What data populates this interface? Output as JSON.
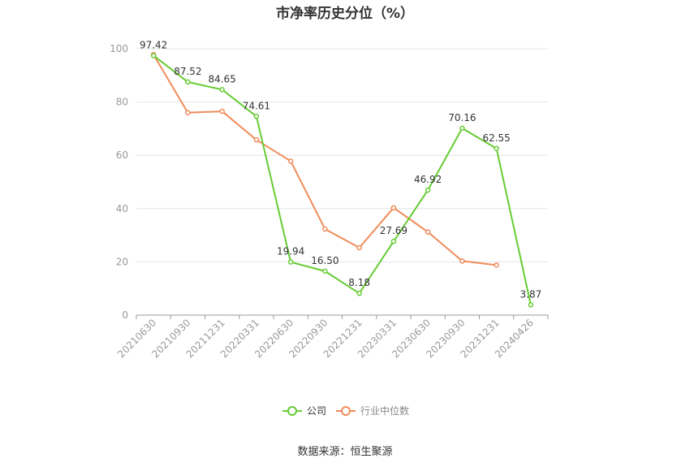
{
  "chart_data": {
    "type": "line",
    "title": "市净率历史分位（%）",
    "categories": [
      "20210630",
      "20210930",
      "20211231",
      "20220331",
      "20220630",
      "20220930",
      "20221231",
      "20230331",
      "20230630",
      "20230930",
      "20231231",
      "20240426"
    ],
    "ylim": [
      0,
      100
    ],
    "yticks": [
      0,
      20,
      40,
      60,
      80,
      100
    ],
    "grid": true,
    "legend_position": "bottom",
    "series": [
      {
        "name": "公司",
        "color": "#66cc33",
        "values": [
          97.42,
          87.52,
          84.65,
          74.61,
          19.94,
          16.5,
          8.18,
          27.69,
          46.92,
          70.16,
          62.55,
          3.87
        ],
        "labels": [
          "97.42",
          "87.52",
          "84.65",
          "74.61",
          "19.94",
          "16.50",
          "8.18",
          "27.69",
          "46.92",
          "70.16",
          "62.55",
          "3.87"
        ]
      },
      {
        "name": "行业中位数",
        "color": "#f08c5a",
        "values": [
          97.8,
          76.0,
          76.5,
          65.8,
          57.8,
          32.3,
          25.3,
          40.3,
          31.2,
          20.3,
          18.8,
          null
        ]
      }
    ]
  },
  "source": "数据来源：恒生聚源"
}
